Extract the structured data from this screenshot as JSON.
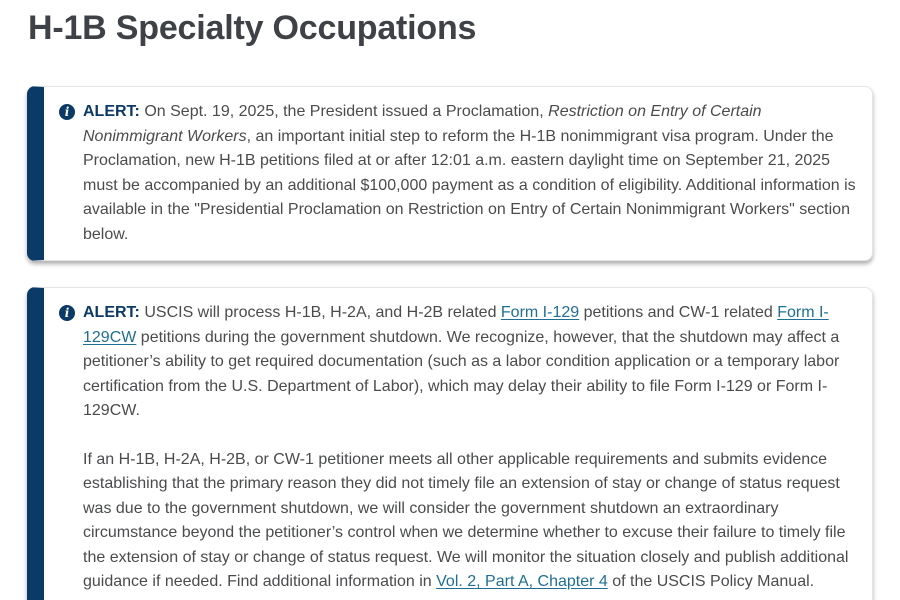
{
  "page": {
    "title": "H-1B Specialty Occupations"
  },
  "colors": {
    "alert_accent_navy": "#0c3a66",
    "link_teal": "#1e6f93",
    "body_text_gray": "#4a4b4d",
    "title_gray": "#3e4145"
  },
  "alerts": [
    {
      "icon": "info-icon",
      "icon_glyph": "i",
      "paragraphs": [
        [
          {
            "t": "ALERT:",
            "style": "label"
          },
          {
            "t": " On Sept. 19, 2025, the President issued a Proclamation, "
          },
          {
            "t": "Restriction on Entry of Certain Nonimmigrant Workers",
            "style": "italic"
          },
          {
            "t": ", an important initial step to reform the H-1B nonimmigrant visa program. Under the Proclamation, new H-1B petitions filed at or after 12:01 a.m. eastern daylight time on September 21, 2025 must be accompanied by an additional $100,000 payment as a condition of eligibility. Additional information is available in the \"Presidential Proclamation on Restriction on Entry of Certain Nonimmigrant Workers\" section below."
          }
        ]
      ]
    },
    {
      "icon": "info-icon",
      "icon_glyph": "i",
      "paragraphs": [
        [
          {
            "t": "ALERT:",
            "style": "label"
          },
          {
            "t": " USCIS will process H-1B, H-2A, and H-2B related "
          },
          {
            "t": "Form I-129",
            "style": "link",
            "name": "form-i-129-link"
          },
          {
            "t": " petitions and CW-1 related "
          },
          {
            "t": "Form I-129CW",
            "style": "link",
            "name": "form-i-129cw-link"
          },
          {
            "t": " petitions during the government shutdown. We recognize, however, that the shutdown may affect a petitioner’s ability to get required documentation (such as a labor condition application or a temporary labor certification from the U.S. Department of Labor), which may delay their ability to file Form I-129 or Form I-129CW."
          }
        ],
        [
          {
            "t": "If an H-1B, H-2A, H-2B, or CW-1 petitioner meets all other applicable requirements and submits evidence establishing that the primary reason they did not timely file an extension of stay or change of status request was due to the government shutdown, we will consider the government shutdown an extraordinary circumstance beyond the petitioner’s control when we determine whether to excuse their failure to timely file the extension of stay or change of status request. We will monitor the situation closely and publish additional guidance if needed. Find additional information in "
          },
          {
            "t": "Vol. 2, Part A, Chapter 4",
            "style": "link",
            "name": "policy-manual-link"
          },
          {
            "t": " of the USCIS Policy Manual."
          }
        ]
      ]
    }
  ]
}
